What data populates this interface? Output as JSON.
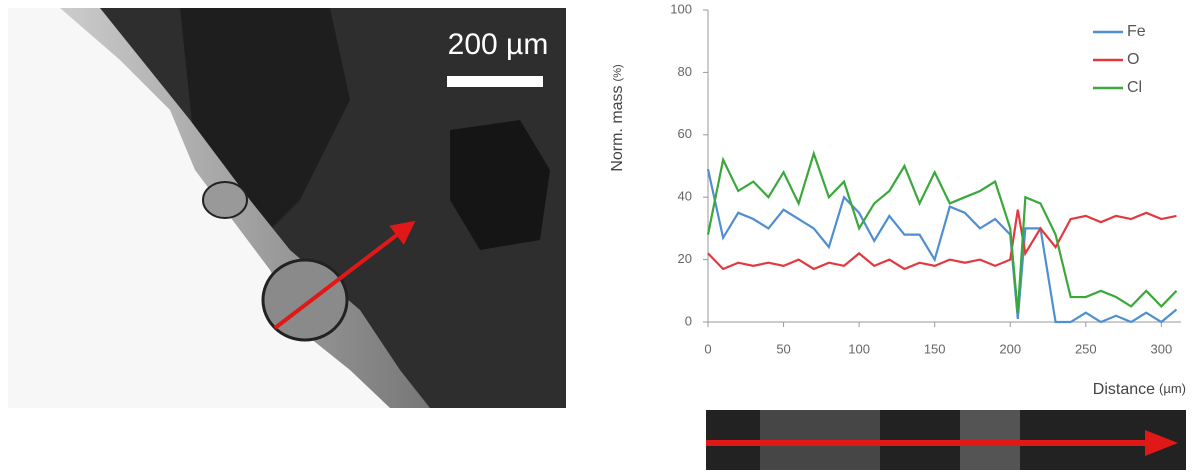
{
  "micrograph": {
    "scale_label": "200 µm"
  },
  "chart_data": {
    "type": "line",
    "y_label": "Norm. mass",
    "y_unit": "(%)",
    "x_label": "Distance",
    "x_unit": "(µm)",
    "x": [
      0,
      10,
      20,
      30,
      40,
      50,
      60,
      70,
      80,
      90,
      100,
      110,
      120,
      130,
      140,
      150,
      160,
      170,
      180,
      190,
      200,
      205,
      210,
      220,
      230,
      240,
      250,
      260,
      270,
      280,
      290,
      300,
      310
    ],
    "series": [
      {
        "name": "Fe",
        "color": "#4f8fd1",
        "values": [
          49,
          27,
          35,
          33,
          30,
          36,
          33,
          30,
          24,
          40,
          35,
          26,
          34,
          28,
          28,
          20,
          37,
          35,
          30,
          33,
          28,
          1,
          30,
          30,
          0,
          0,
          3,
          0,
          2,
          0,
          3,
          0,
          4
        ]
      },
      {
        "name": "O",
        "color": "#e2393f",
        "values": [
          22,
          17,
          19,
          18,
          19,
          18,
          20,
          17,
          19,
          18,
          22,
          18,
          20,
          17,
          19,
          18,
          20,
          19,
          20,
          18,
          20,
          36,
          22,
          30,
          24,
          33,
          34,
          32,
          34,
          33,
          35,
          33,
          34
        ]
      },
      {
        "name": "Cl",
        "color": "#3aa83a",
        "values": [
          28,
          52,
          42,
          45,
          40,
          48,
          38,
          54,
          40,
          45,
          30,
          38,
          42,
          50,
          38,
          48,
          38,
          40,
          42,
          45,
          30,
          3,
          40,
          38,
          28,
          8,
          8,
          10,
          8,
          5,
          10,
          5,
          10
        ]
      }
    ],
    "xlim": [
      0,
      313
    ],
    "xticks": [
      0,
      50,
      100,
      150,
      200,
      250,
      300
    ],
    "ylim": [
      0,
      100
    ],
    "yticks": [
      0,
      20,
      40,
      60,
      80,
      100
    ],
    "grid": false,
    "legend": "top-right"
  }
}
